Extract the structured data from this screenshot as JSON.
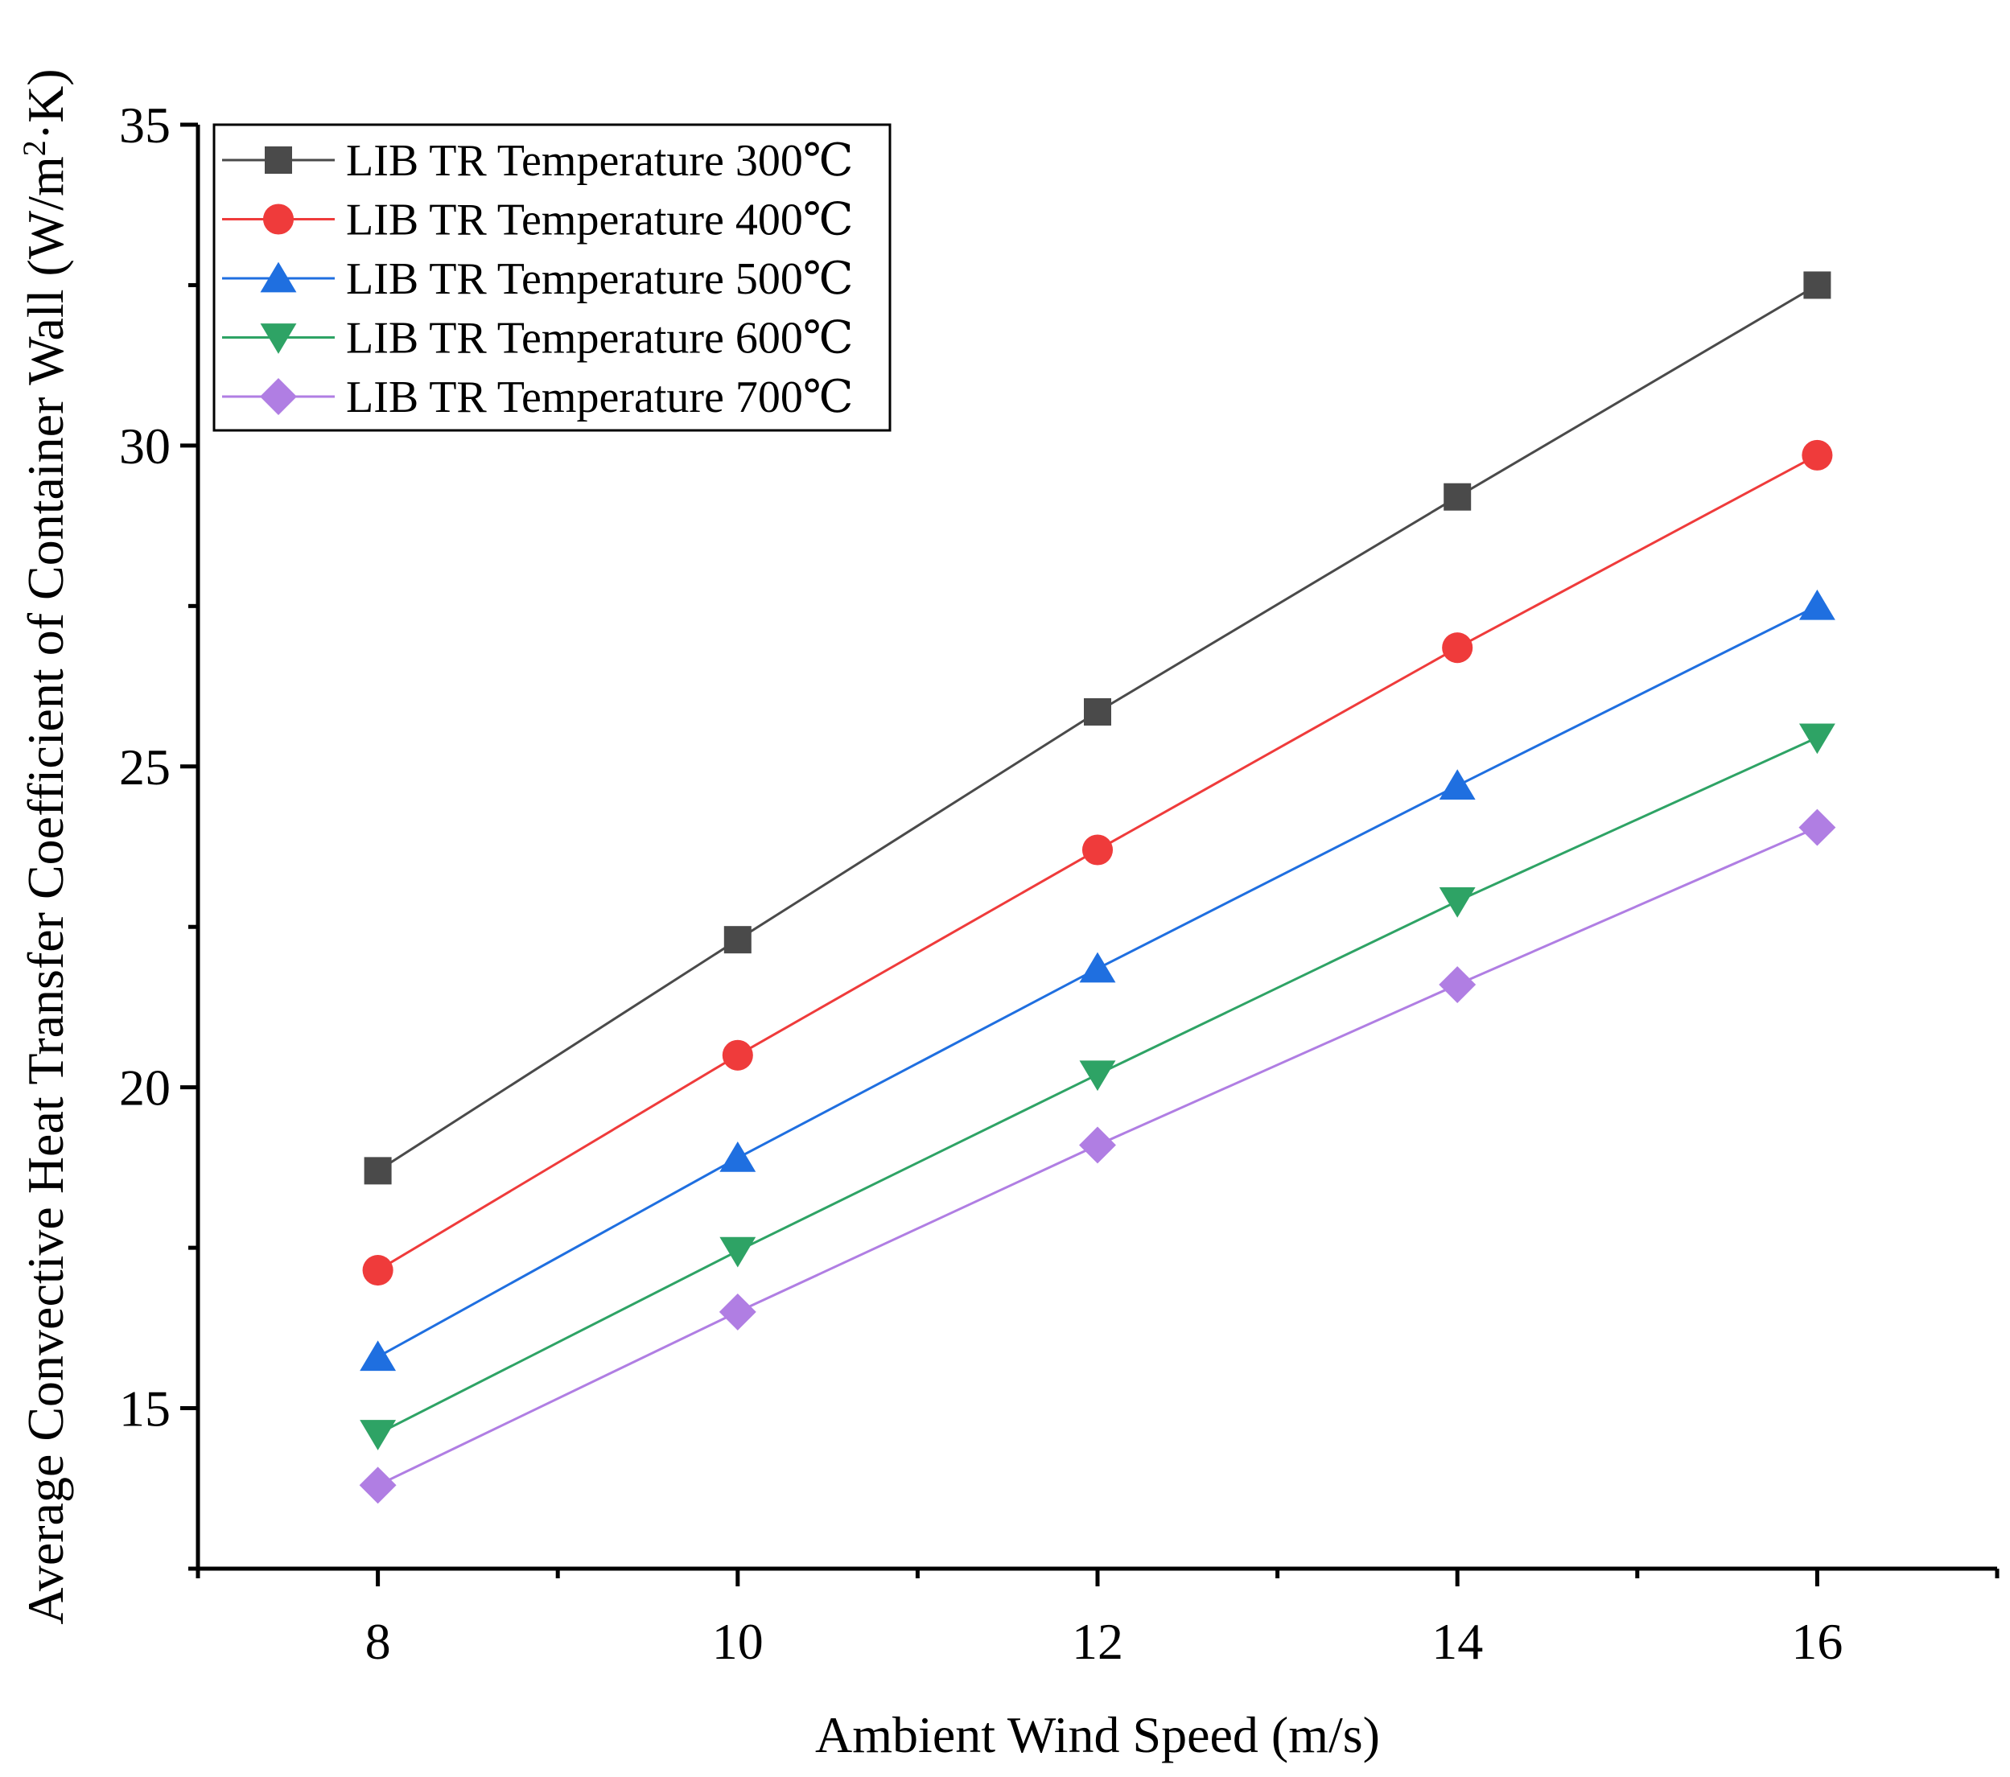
{
  "chart_data": {
    "type": "line",
    "title": "",
    "xlabel": "Ambient Wind Speed (m/s)",
    "ylabel": {
      "prefix": "Average Convective Heat Transfer Coefficient of Container Wall (W/m",
      "sup": "2",
      "suffix": "·K)"
    },
    "xlim": [
      7,
      17
    ],
    "ylim": [
      12.5,
      35
    ],
    "x_major_ticks": [
      8,
      10,
      12,
      14,
      16
    ],
    "x_minor_ticks": [
      7,
      9,
      11,
      13,
      15,
      17
    ],
    "y_major_ticks": [
      15,
      20,
      25,
      30,
      35
    ],
    "y_minor_ticks": [
      12.5,
      17.5,
      22.5,
      27.5,
      32.5
    ],
    "x_tick_labels": [
      "8",
      "10",
      "12",
      "14",
      "16"
    ],
    "y_tick_labels": [
      "15",
      "20",
      "25",
      "30",
      "35"
    ],
    "x": [
      8,
      10,
      12,
      14,
      16
    ],
    "legend_position": "top-left",
    "series": [
      {
        "name": "LIB TR Temperature 300℃",
        "color": "#4a4a4a",
        "marker": "square",
        "values": [
          18.7,
          22.3,
          25.85,
          29.2,
          32.5
        ]
      },
      {
        "name": "LIB TR Temperature 400℃",
        "color": "#ef3b3b",
        "marker": "circle",
        "values": [
          17.15,
          20.5,
          23.7,
          26.85,
          29.85
        ]
      },
      {
        "name": "LIB TR Temperature 500℃",
        "color": "#1f6fe0",
        "marker": "triangle-up",
        "values": [
          15.8,
          18.9,
          21.85,
          24.7,
          27.5
        ]
      },
      {
        "name": "LIB TR Temperature 600℃",
        "color": "#2ea365",
        "marker": "triangle-down",
        "values": [
          14.6,
          17.45,
          20.2,
          22.9,
          25.45
        ]
      },
      {
        "name": "LIB TR Temperature 700℃",
        "color": "#b07ee3",
        "marker": "diamond",
        "values": [
          13.8,
          16.5,
          19.1,
          21.6,
          24.05
        ]
      }
    ]
  }
}
